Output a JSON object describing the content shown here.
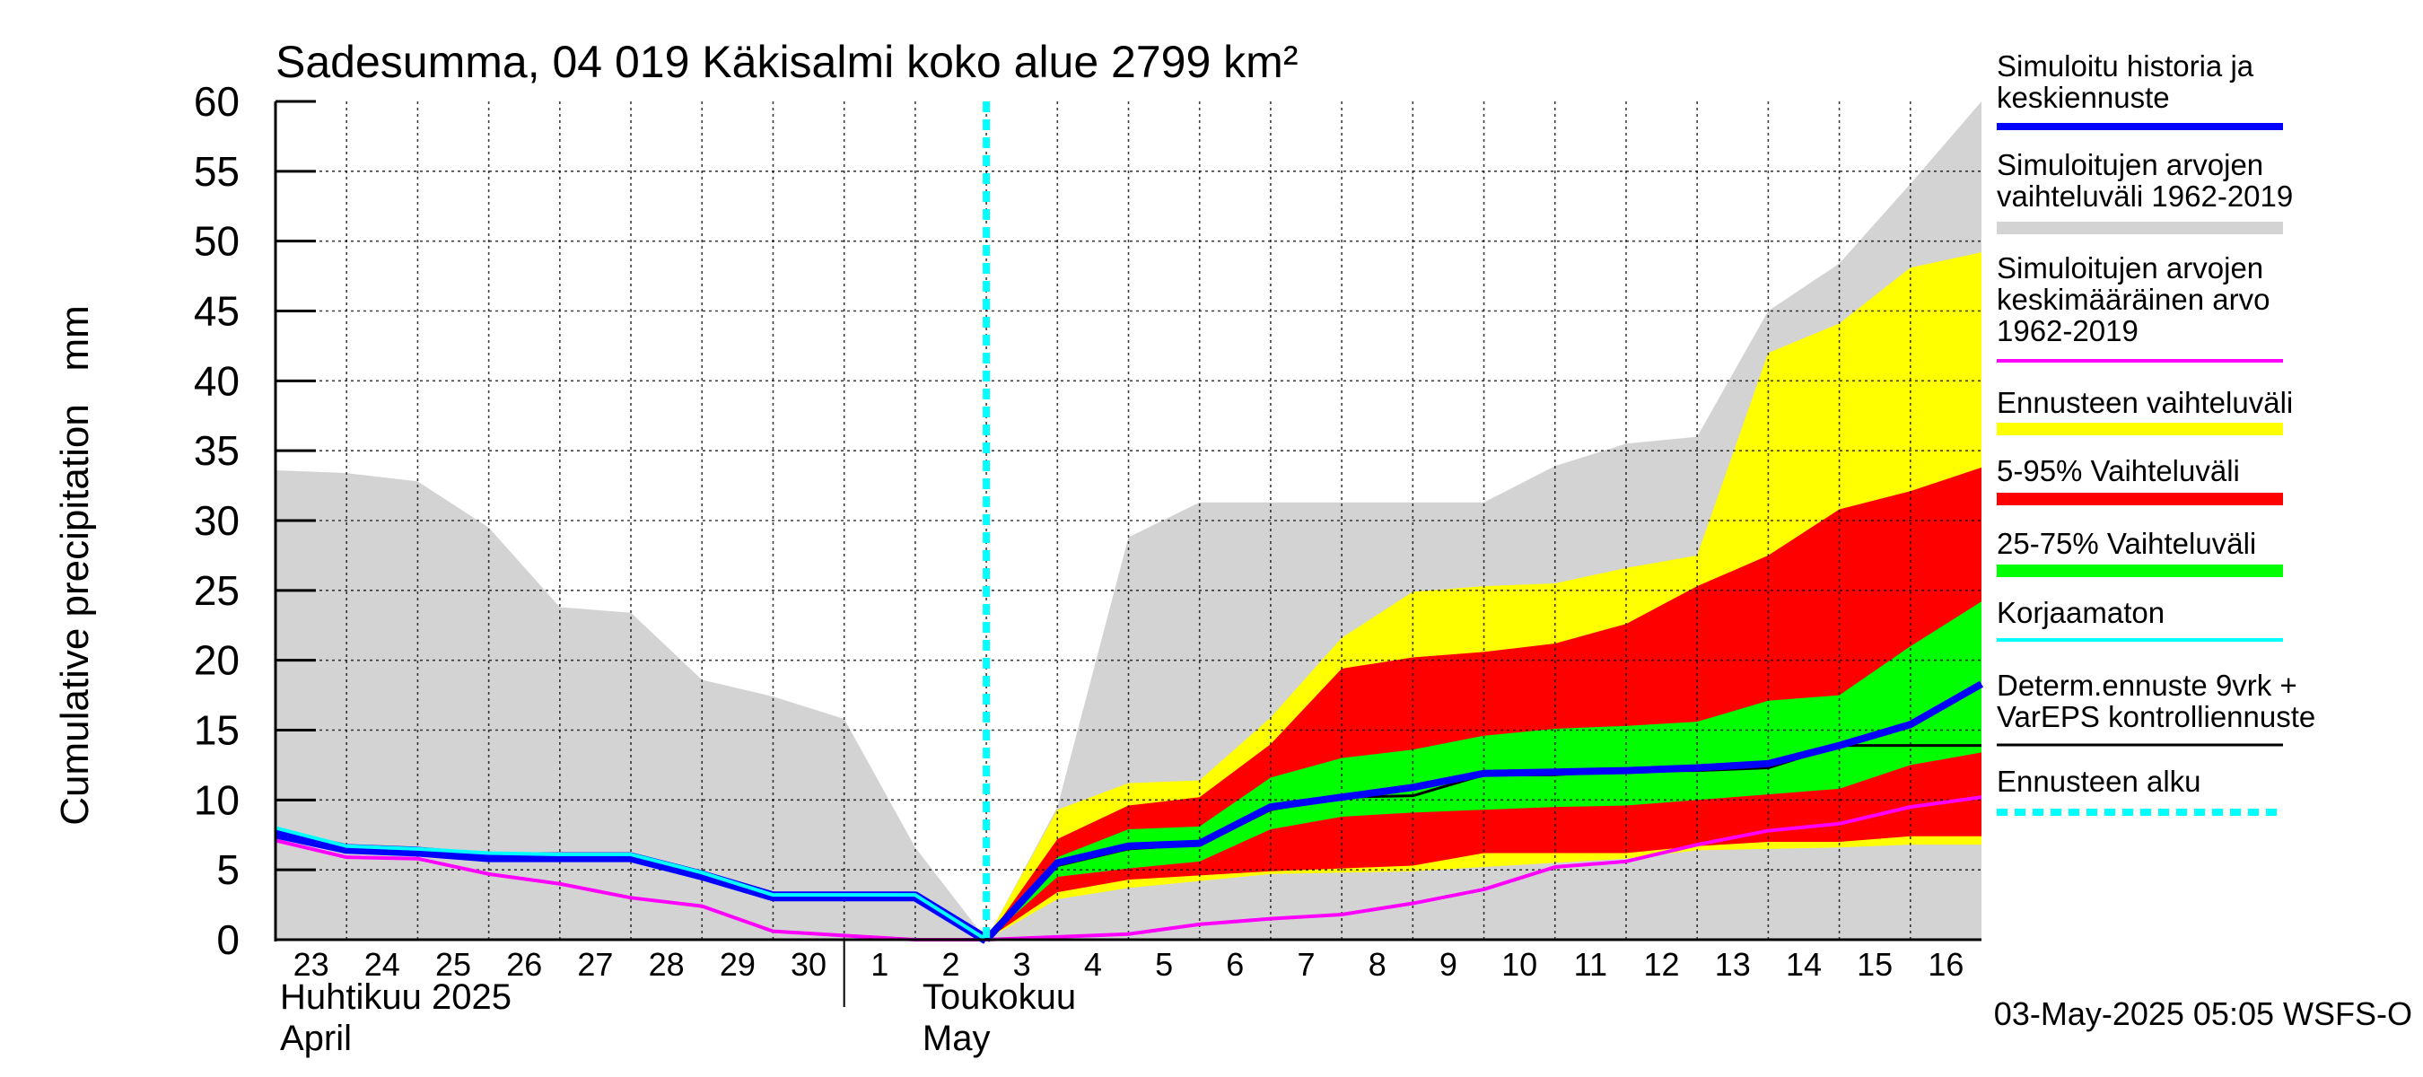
{
  "chart_data": {
    "type": "area",
    "title": "Sadesumma, 04 019 Käkisalmi koko alue 2799 km²",
    "ylabel": "Cumulative precipitation   mm",
    "ylim": [
      0,
      60
    ],
    "yticks": [
      0,
      5,
      10,
      15,
      20,
      25,
      30,
      35,
      40,
      45,
      50,
      55,
      60
    ],
    "grid": true,
    "x": [
      "2025-04-23",
      "2025-04-24",
      "2025-04-25",
      "2025-04-26",
      "2025-04-27",
      "2025-04-28",
      "2025-04-29",
      "2025-04-30",
      "2025-05-01",
      "2025-05-02",
      "2025-05-03",
      "2025-05-04",
      "2025-05-05",
      "2025-05-06",
      "2025-05-07",
      "2025-05-08",
      "2025-05-09",
      "2025-05-10",
      "2025-05-11",
      "2025-05-12",
      "2025-05-13",
      "2025-05-14",
      "2025-05-15",
      "2025-05-16",
      "2025-05-17"
    ],
    "x_tick_labels": [
      "23",
      "24",
      "25",
      "26",
      "27",
      "28",
      "29",
      "30",
      "1",
      "2",
      "3",
      "4",
      "5",
      "6",
      "7",
      "8",
      "9",
      "10",
      "11",
      "12",
      "13",
      "14",
      "15",
      "16"
    ],
    "month_labels": [
      {
        "line1": "Huhtikuu  2025",
        "line2": "April"
      },
      {
        "line1": "Toukokuu",
        "line2": "May"
      }
    ],
    "forecast_start": "2025-05-03",
    "legend_position": "right",
    "series": [
      {
        "name": "Simuloitujen arvojen vaihteluväli 1962-2019",
        "kind": "band",
        "color": "#d3d3d3",
        "x": [
          "2025-04-23",
          "2025-04-24",
          "2025-04-25",
          "2025-04-26",
          "2025-04-27",
          "2025-04-28",
          "2025-04-29",
          "2025-04-30",
          "2025-05-01",
          "2025-05-02",
          "2025-05-03",
          "2025-05-04",
          "2025-05-05",
          "2025-05-06",
          "2025-05-07",
          "2025-05-08",
          "2025-05-09",
          "2025-05-10",
          "2025-05-11",
          "2025-05-12",
          "2025-05-13",
          "2025-05-14",
          "2025-05-15",
          "2025-05-16",
          "2025-05-17"
        ],
        "upper": [
          33.6,
          33.4,
          32.8,
          29.5,
          23.8,
          23.4,
          18.6,
          17.4,
          15.8,
          6.6,
          0,
          9.5,
          28.8,
          31.3,
          31.3,
          31.3,
          31.3,
          31.3,
          33.9,
          35.5,
          36,
          45,
          48.4,
          54.1,
          60
        ],
        "lower": [
          0,
          0,
          0,
          0,
          0,
          0,
          0,
          0,
          0,
          0,
          0,
          0,
          0,
          0,
          0,
          0,
          0,
          0,
          0,
          0,
          0,
          0,
          0,
          0,
          0
        ]
      },
      {
        "name": "Ennusteen vaihteluväli",
        "kind": "band",
        "color": "#ffff00",
        "x": [
          "2025-05-03",
          "2025-05-04",
          "2025-05-05",
          "2025-05-06",
          "2025-05-07",
          "2025-05-08",
          "2025-05-09",
          "2025-05-10",
          "2025-05-11",
          "2025-05-12",
          "2025-05-13",
          "2025-05-14",
          "2025-05-15",
          "2025-05-16",
          "2025-05-17"
        ],
        "upper": [
          0,
          9.3,
          11.2,
          11.4,
          15.9,
          21.6,
          24.9,
          25.3,
          25.5,
          26.6,
          27.5,
          42,
          44.1,
          48.1,
          49.2
        ],
        "lower": [
          0,
          2.9,
          3.7,
          4.2,
          4.7,
          4.8,
          4.9,
          5.2,
          5.5,
          5.8,
          6.4,
          6.5,
          6.6,
          6.8,
          6.8
        ]
      },
      {
        "name": "5-95% Vaihteluväli",
        "kind": "band",
        "color": "#ff0000",
        "x": [
          "2025-05-03",
          "2025-05-04",
          "2025-05-05",
          "2025-05-06",
          "2025-05-07",
          "2025-05-08",
          "2025-05-09",
          "2025-05-10",
          "2025-05-11",
          "2025-05-12",
          "2025-05-13",
          "2025-05-14",
          "2025-05-15",
          "2025-05-16",
          "2025-05-17"
        ],
        "upper": [
          0,
          7.2,
          9.6,
          10.2,
          14,
          19.4,
          20.2,
          20.6,
          21.2,
          22.6,
          25.3,
          27.5,
          30.8,
          32.1,
          33.8
        ],
        "lower": [
          0,
          3.4,
          4.3,
          4.6,
          4.9,
          5.1,
          5.3,
          6.2,
          6.2,
          6.2,
          6.7,
          7,
          7,
          7.4,
          7.4
        ]
      },
      {
        "name": "25-75% Vaihteluväli",
        "kind": "band",
        "color": "#00ff00",
        "x": [
          "2025-05-03",
          "2025-05-04",
          "2025-05-05",
          "2025-05-06",
          "2025-05-07",
          "2025-05-08",
          "2025-05-09",
          "2025-05-10",
          "2025-05-11",
          "2025-05-12",
          "2025-05-13",
          "2025-05-14",
          "2025-05-15",
          "2025-05-16",
          "2025-05-17"
        ],
        "upper": [
          0,
          5.9,
          7.9,
          8.1,
          11.6,
          13,
          13.6,
          14.6,
          15.1,
          15.3,
          15.6,
          17.1,
          17.5,
          21,
          24.2
        ],
        "lower": [
          0,
          4.5,
          5.1,
          5.6,
          7.9,
          8.8,
          9.1,
          9.3,
          9.5,
          9.6,
          10,
          10.4,
          10.8,
          12.5,
          13.4
        ]
      },
      {
        "name": "Simuloitujen arvojen keskimääräinen arvo 1962-2019",
        "kind": "line",
        "color": "#ff00ff",
        "x": [
          "2025-04-23",
          "2025-04-24",
          "2025-04-25",
          "2025-04-26",
          "2025-04-27",
          "2025-04-28",
          "2025-04-29",
          "2025-04-30",
          "2025-05-01",
          "2025-05-02",
          "2025-05-03",
          "2025-05-04",
          "2025-05-05",
          "2025-05-06",
          "2025-05-07",
          "2025-05-08",
          "2025-05-09",
          "2025-05-10",
          "2025-05-11",
          "2025-05-12",
          "2025-05-13",
          "2025-05-14",
          "2025-05-15",
          "2025-05-16",
          "2025-05-17"
        ],
        "values": [
          7.1,
          5.9,
          5.8,
          4.7,
          4.0,
          3.0,
          2.4,
          0.6,
          0.3,
          0.0,
          0.0,
          0.2,
          0.4,
          1.1,
          1.5,
          1.8,
          2.6,
          3.6,
          5.2,
          5.6,
          6.8,
          7.8,
          8.3,
          9.5,
          10.2
        ]
      },
      {
        "name": "Korjaamaton",
        "kind": "line",
        "color": "#00ffff",
        "x": [
          "2025-04-23",
          "2025-04-24",
          "2025-04-25",
          "2025-04-26",
          "2025-04-27",
          "2025-04-28",
          "2025-04-29",
          "2025-04-30",
          "2025-05-01",
          "2025-05-02",
          "2025-05-03"
        ],
        "values": [
          8.0,
          6.7,
          6.5,
          6.2,
          6.1,
          6.1,
          4.8,
          3.2,
          3.2,
          3.2,
          0.0
        ]
      },
      {
        "name": "Determ.ennuste 9vrk + VarEPS kontrolliennuste",
        "kind": "line",
        "color": "#000000",
        "x": [
          "2025-05-03",
          "2025-05-04",
          "2025-05-05",
          "2025-05-06",
          "2025-05-07",
          "2025-05-08",
          "2025-05-09",
          "2025-05-10",
          "2025-05-11",
          "2025-05-12",
          "2025-05-13",
          "2025-05-14",
          "2025-05-15",
          "2025-05-16",
          "2025-05-17"
        ],
        "values": [
          0,
          5.3,
          6.5,
          6.8,
          9.3,
          10.2,
          10.3,
          11.8,
          11.8,
          12.1,
          12.1,
          12.3,
          13.9,
          13.9,
          13.9
        ]
      },
      {
        "name": "Simuloitu historia ja keskiennuste",
        "kind": "line",
        "color": "#0000ff",
        "x": [
          "2025-04-23",
          "2025-04-24",
          "2025-04-25",
          "2025-04-26",
          "2025-04-27",
          "2025-04-28",
          "2025-04-29",
          "2025-04-30",
          "2025-05-01",
          "2025-05-02",
          "2025-05-03",
          "2025-05-04",
          "2025-05-05",
          "2025-05-06",
          "2025-05-07",
          "2025-05-08",
          "2025-05-09",
          "2025-05-10",
          "2025-05-11",
          "2025-05-12",
          "2025-05-13",
          "2025-05-14",
          "2025-05-15",
          "2025-05-16",
          "2025-05-17"
        ],
        "values": [
          7.6,
          6.5,
          6.3,
          5.9,
          5.9,
          5.9,
          4.6,
          3.1,
          3.1,
          3.1,
          0.0,
          5.5,
          6.7,
          6.9,
          9.5,
          10.2,
          10.9,
          11.9,
          12.0,
          12.1,
          12.3,
          12.6,
          13.9,
          15.4,
          18.3
        ]
      }
    ]
  },
  "legend": {
    "items": [
      {
        "label_lines": [
          "Simuloitu historia ja",
          "keskiennuste"
        ],
        "color": "#0000ff",
        "style": "line-thick"
      },
      {
        "label_lines": [
          "Simuloitujen arvojen",
          "vaihteluväli 1962-2019"
        ],
        "color": "#d3d3d3",
        "style": "band"
      },
      {
        "label_lines": [
          "Simuloitujen arvojen",
          "keskimääräinen arvo",
          "   1962-2019"
        ],
        "color": "#ff00ff",
        "style": "line"
      },
      {
        "label_lines": [
          "Ennusteen vaihteluväli"
        ],
        "color": "#ffff00",
        "style": "band"
      },
      {
        "label_lines": [
          "5-95% Vaihteluväli"
        ],
        "color": "#ff0000",
        "style": "band"
      },
      {
        "label_lines": [
          "25-75% Vaihteluväli"
        ],
        "color": "#00ff00",
        "style": "band"
      },
      {
        "label_lines": [
          "Korjaamaton"
        ],
        "color": "#00ffff",
        "style": "line"
      },
      {
        "label_lines": [
          "Determ.ennuste 9vrk +",
          "VarEPS kontrolliennuste"
        ],
        "color": "#000000",
        "style": "line-thin"
      },
      {
        "label_lines": [
          "Ennusteen alku"
        ],
        "color": "#00ffff",
        "style": "dashed"
      }
    ]
  },
  "footer": "03-May-2025 05:05 WSFS-O"
}
